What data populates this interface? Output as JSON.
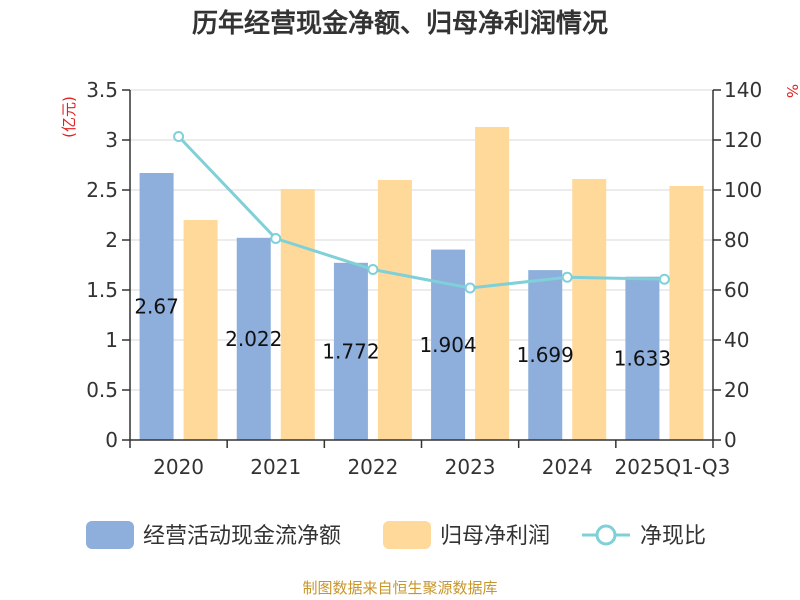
{
  "chart_data": {
    "type": "bar",
    "title": "历年经营现金净额、归母净利润情况",
    "categories": [
      "2020",
      "2021",
      "2022",
      "2023",
      "2024",
      "2025Q1-Q3"
    ],
    "series": [
      {
        "name": "经营活动现金流净额",
        "type": "bar",
        "axis": "left",
        "color": "#8eaedb",
        "values": [
          2.67,
          2.022,
          1.772,
          1.904,
          1.699,
          1.633
        ],
        "labels": [
          "2.67",
          "2.022",
          "1.772",
          "1.904",
          "1.699",
          "1.633"
        ]
      },
      {
        "name": "归母净利润",
        "type": "bar",
        "axis": "left",
        "color": "#ffd99a",
        "values": [
          2.2,
          2.51,
          2.6,
          3.13,
          2.61,
          2.54
        ]
      },
      {
        "name": "净现比",
        "type": "line",
        "axis": "right",
        "color": "#7fd0d8",
        "values": [
          121.4,
          80.6,
          68.2,
          60.8,
          65.1,
          64.3
        ]
      }
    ],
    "left_axis": {
      "unit": "(亿元)",
      "min": 0,
      "max": 3.5,
      "ticks": [
        "0",
        "0.5",
        "1",
        "1.5",
        "2",
        "2.5",
        "3",
        "3.5"
      ]
    },
    "right_axis": {
      "unit": "%",
      "min": 0,
      "max": 140,
      "ticks": [
        "0",
        "20",
        "40",
        "60",
        "80",
        "100",
        "120",
        "140"
      ]
    },
    "grid": "horizontal",
    "legend_position": "bottom"
  },
  "source_text": "制图数据来自恒生聚源数据库"
}
